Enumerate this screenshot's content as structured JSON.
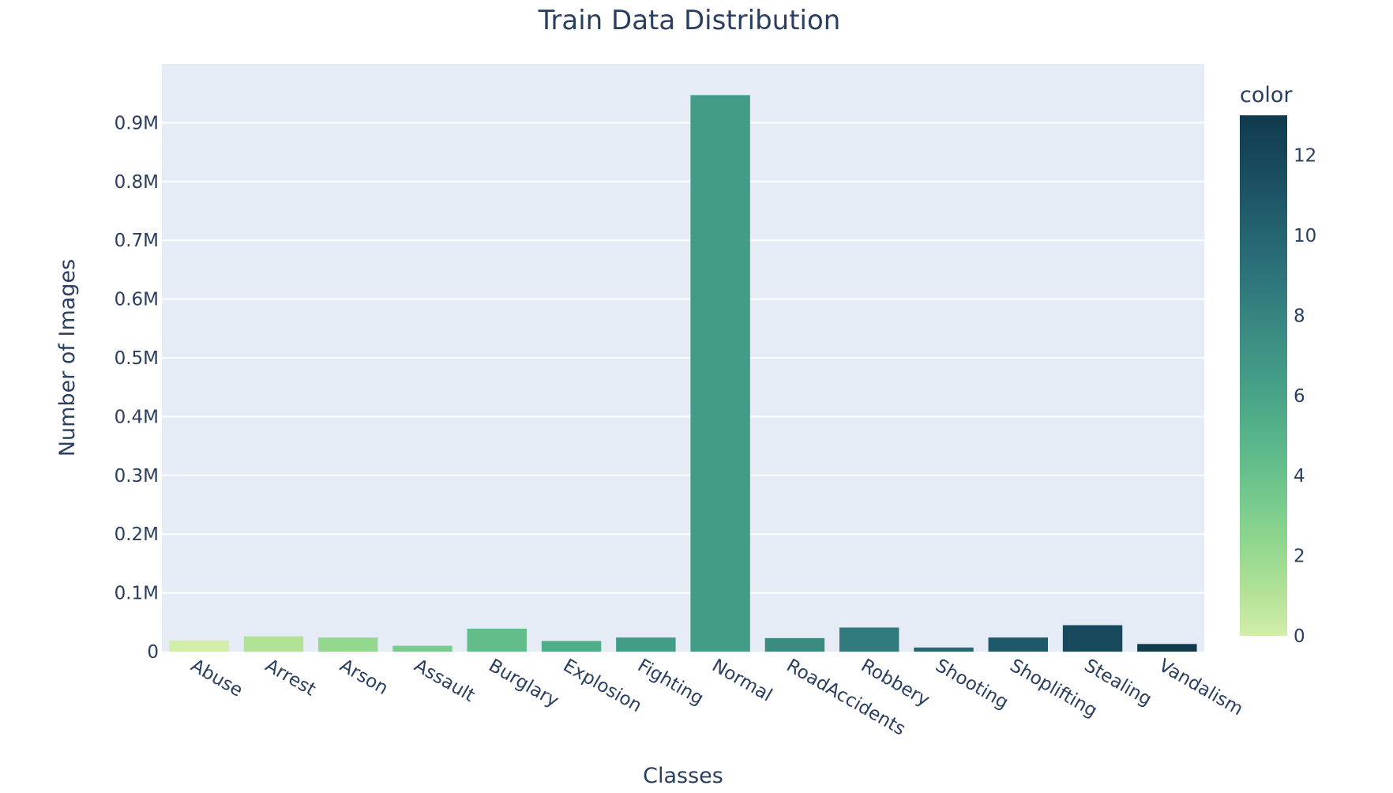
{
  "chart_data": {
    "type": "bar",
    "title": "Train Data Distribution",
    "xlabel": "Classes",
    "ylabel": "Number of Images",
    "ylim": [
      0,
      1000000
    ],
    "yticks": [
      {
        "value": 0,
        "label": "0"
      },
      {
        "value": 100000,
        "label": "0.1M"
      },
      {
        "value": 200000,
        "label": "0.2M"
      },
      {
        "value": 300000,
        "label": "0.3M"
      },
      {
        "value": 400000,
        "label": "0.4M"
      },
      {
        "value": 500000,
        "label": "0.5M"
      },
      {
        "value": 600000,
        "label": "0.6M"
      },
      {
        "value": 700000,
        "label": "0.7M"
      },
      {
        "value": 800000,
        "label": "0.8M"
      },
      {
        "value": 900000,
        "label": "0.9M"
      }
    ],
    "categories": [
      "Abuse",
      "Arrest",
      "Arson",
      "Assault",
      "Burglary",
      "Explosion",
      "Fighting",
      "Normal",
      "RoadAccidents",
      "Robbery",
      "Shooting",
      "Shoplifting",
      "Stealing",
      "Vandalism"
    ],
    "values": [
      19000,
      26000,
      24000,
      10000,
      39000,
      18000,
      24000,
      947000,
      23000,
      41000,
      7000,
      24000,
      45000,
      13000
    ],
    "color_values": [
      0,
      1,
      2,
      3,
      4,
      5,
      6,
      7,
      8,
      9,
      10,
      11,
      12,
      13
    ],
    "colorbar": {
      "title": "color",
      "range": [
        0,
        13
      ],
      "ticks": [
        0,
        2,
        4,
        6,
        8,
        10,
        12
      ],
      "colorscale": [
        "#d2eeaa",
        "#b2e296",
        "#94d88f",
        "#79cc8d",
        "#62bd8b",
        "#50ad89",
        "#439c86",
        "#3a8b82",
        "#30797d",
        "#276874",
        "#1f5868",
        "#17485c",
        "#103a4e"
      ]
    },
    "plot_background": "#e5ecf6",
    "grid": true,
    "legend": "colorbar-right"
  }
}
